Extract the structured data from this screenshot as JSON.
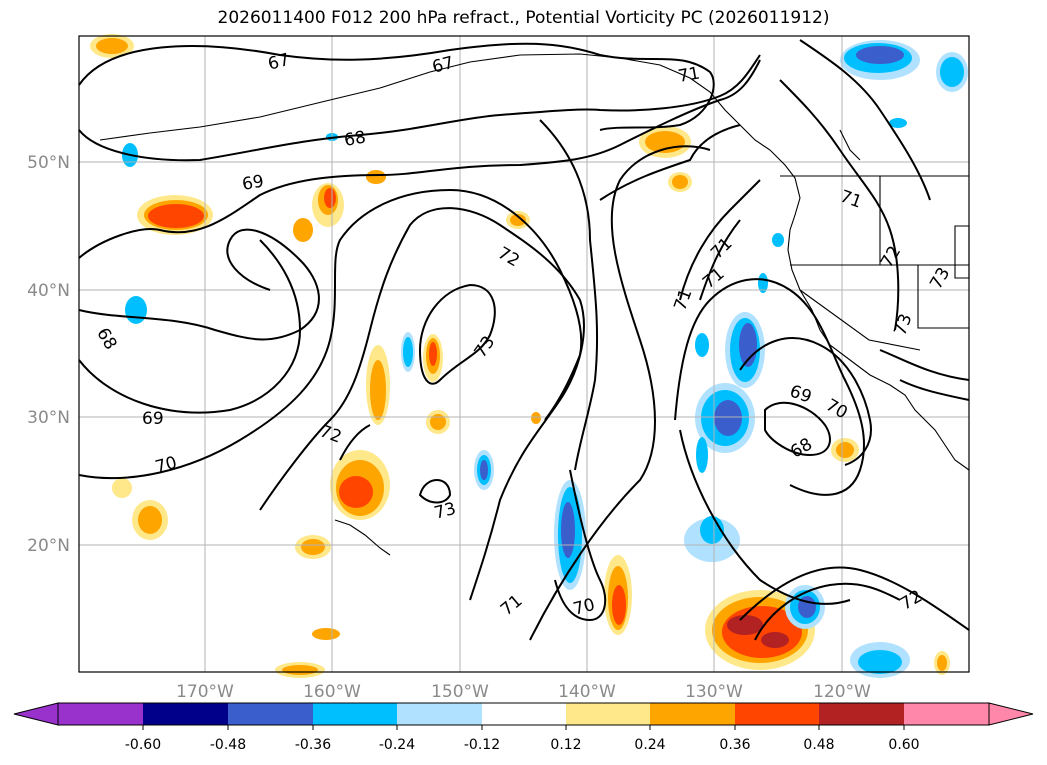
{
  "title": "2026011400 F012 200 hPa refract., Potential Vorticity PC (2026011912)",
  "lat_labels": [
    "50°N",
    "40°N",
    "30°N",
    "20°N"
  ],
  "lon_labels": [
    "170°W",
    "160°W",
    "150°W",
    "140°W",
    "130°W",
    "120°W"
  ],
  "contour_labels": [
    "67",
    "67",
    "68",
    "69",
    "72",
    "73",
    "72",
    "71",
    "71",
    "71",
    "71",
    "68",
    "69",
    "70",
    "68",
    "69",
    "70",
    "72",
    "73",
    "71",
    "70",
    "72",
    "73",
    "71",
    "73"
  ],
  "colorbar": {
    "ticks": [
      "-0.60",
      "-0.48",
      "-0.36",
      "-0.24",
      "-0.12",
      "0.12",
      "0.24",
      "0.36",
      "0.48",
      "0.60"
    ],
    "colors": [
      "#9932cc",
      "#00008b",
      "#3a5fcd",
      "#00bfff",
      "#b0e2ff",
      "#ffffff",
      "#ffe88a",
      "#ffa500",
      "#ff4500",
      "#b22222",
      "#ff88aa"
    ]
  }
}
